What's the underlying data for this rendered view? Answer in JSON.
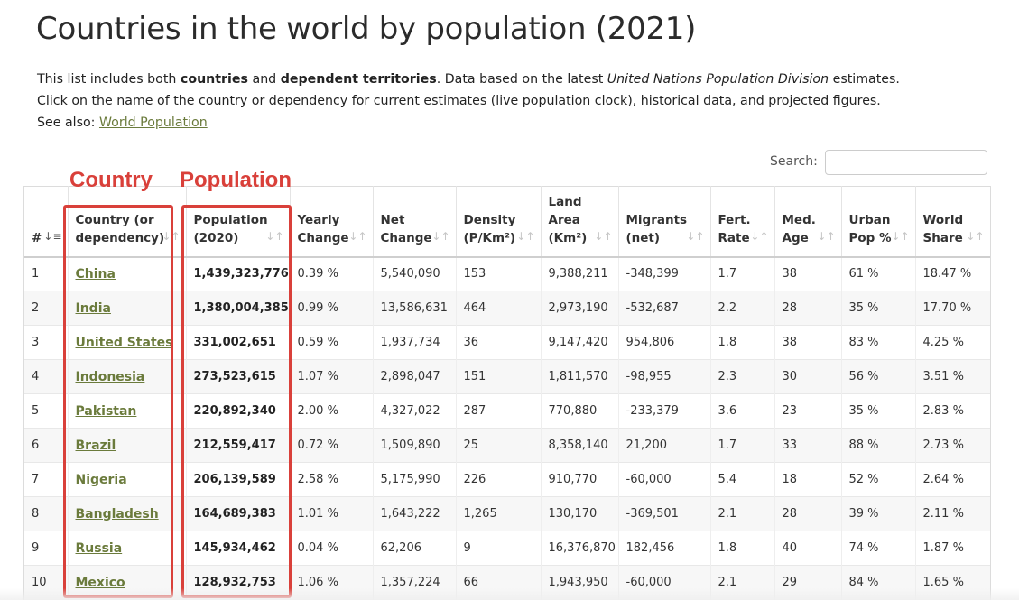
{
  "page": {
    "title": "Countries in the world by population (2021)",
    "intro1_a": "This list includes both ",
    "intro1_b": "countries",
    "intro1_c": " and ",
    "intro1_d": "dependent territories",
    "intro1_e": ". Data based on the latest ",
    "intro1_f": "United Nations Population Division",
    "intro1_g": " estimates.",
    "intro2": "Click on the name of the country or dependency for current estimates (live population clock), historical data, and projected figures.",
    "intro3": "See also: ",
    "intro3_link": "World Population"
  },
  "search": {
    "label": "Search:",
    "value": "",
    "placeholder": ""
  },
  "annotations": {
    "country": "Country",
    "population": "Population"
  },
  "colors": {
    "annotation": "#d9403a",
    "link": "#6b7b3c"
  },
  "table": {
    "headers": [
      "#",
      "Country (or dependency)",
      "Population (2020)",
      "Yearly Change",
      "Net Change",
      "Density (P/Km²)",
      "Land Area (Km²)",
      "Migrants (net)",
      "Fert. Rate",
      "Med. Age",
      "Urban Pop %",
      "World Share"
    ],
    "rows": [
      [
        "1",
        "China",
        "1,439,323,776",
        "0.39 %",
        "5,540,090",
        "153",
        "9,388,211",
        "-348,399",
        "1.7",
        "38",
        "61 %",
        "18.47 %"
      ],
      [
        "2",
        "India",
        "1,380,004,385",
        "0.99 %",
        "13,586,631",
        "464",
        "2,973,190",
        "-532,687",
        "2.2",
        "28",
        "35 %",
        "17.70 %"
      ],
      [
        "3",
        "United States",
        "331,002,651",
        "0.59 %",
        "1,937,734",
        "36",
        "9,147,420",
        "954,806",
        "1.8",
        "38",
        "83 %",
        "4.25 %"
      ],
      [
        "4",
        "Indonesia",
        "273,523,615",
        "1.07 %",
        "2,898,047",
        "151",
        "1,811,570",
        "-98,955",
        "2.3",
        "30",
        "56 %",
        "3.51 %"
      ],
      [
        "5",
        "Pakistan",
        "220,892,340",
        "2.00 %",
        "4,327,022",
        "287",
        "770,880",
        "-233,379",
        "3.6",
        "23",
        "35 %",
        "2.83 %"
      ],
      [
        "6",
        "Brazil",
        "212,559,417",
        "0.72 %",
        "1,509,890",
        "25",
        "8,358,140",
        "21,200",
        "1.7",
        "33",
        "88 %",
        "2.73 %"
      ],
      [
        "7",
        "Nigeria",
        "206,139,589",
        "2.58 %",
        "5,175,990",
        "226",
        "910,770",
        "-60,000",
        "5.4",
        "18",
        "52 %",
        "2.64 %"
      ],
      [
        "8",
        "Bangladesh",
        "164,689,383",
        "1.01 %",
        "1,643,222",
        "1,265",
        "130,170",
        "-369,501",
        "2.1",
        "28",
        "39 %",
        "2.11 %"
      ],
      [
        "9",
        "Russia",
        "145,934,462",
        "0.04 %",
        "62,206",
        "9",
        "16,376,870",
        "182,456",
        "1.8",
        "40",
        "74 %",
        "1.87 %"
      ],
      [
        "10",
        "Mexico",
        "128,932,753",
        "1.06 %",
        "1,357,224",
        "66",
        "1,943,950",
        "-60,000",
        "2.1",
        "29",
        "84 %",
        "1.65 %"
      ]
    ]
  }
}
